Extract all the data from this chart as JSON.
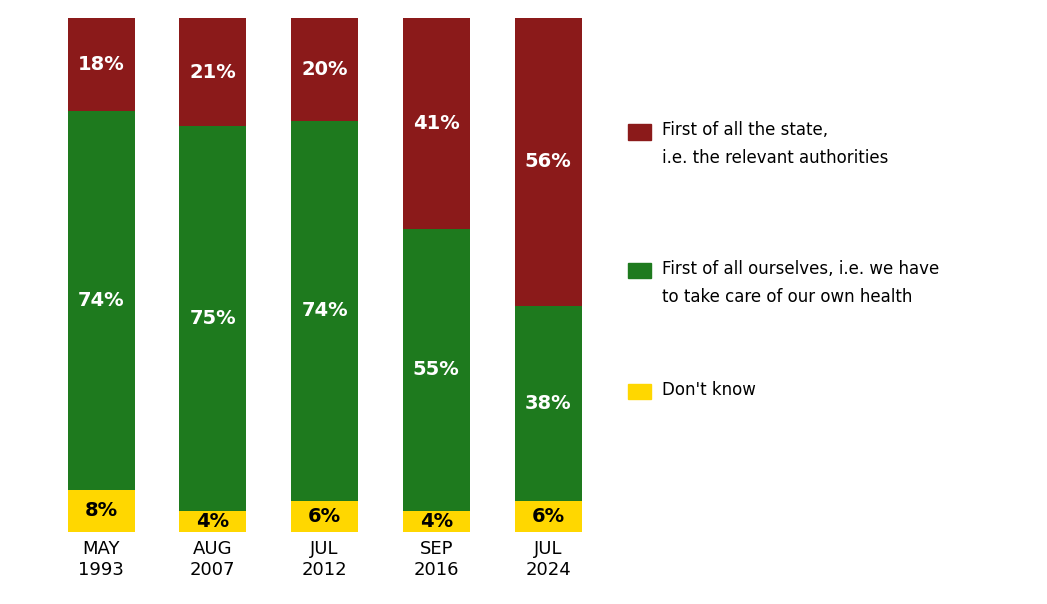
{
  "categories": [
    "MAY\n1993",
    "AUG\n2007",
    "JUL\n2012",
    "SEP\n2016",
    "JUL\n2024"
  ],
  "dont_know": [
    8,
    4,
    6,
    4,
    6
  ],
  "ourselves": [
    74,
    75,
    74,
    55,
    38
  ],
  "state": [
    18,
    21,
    20,
    41,
    56
  ],
  "color_state": "#8B1A1A",
  "color_ourselves": "#1E7A1E",
  "color_dont_know": "#FFD700",
  "text_color_dk": "#000000",
  "text_color_white": "#FFFFFF",
  "legend_state_line1": "First of all the state,",
  "legend_state_line2": "i.e. the relevant authorities",
  "legend_ourselves_line1": "First of all ourselves, i.e. we have",
  "legend_ourselves_line2": "to take care of our own health",
  "legend_dont_know": "Don't know",
  "bar_width": 0.6,
  "figsize": [
    10.47,
    6.04
  ],
  "dpi": 100,
  "label_fontsize": 14,
  "tick_fontsize": 13,
  "legend_fontsize": 12
}
